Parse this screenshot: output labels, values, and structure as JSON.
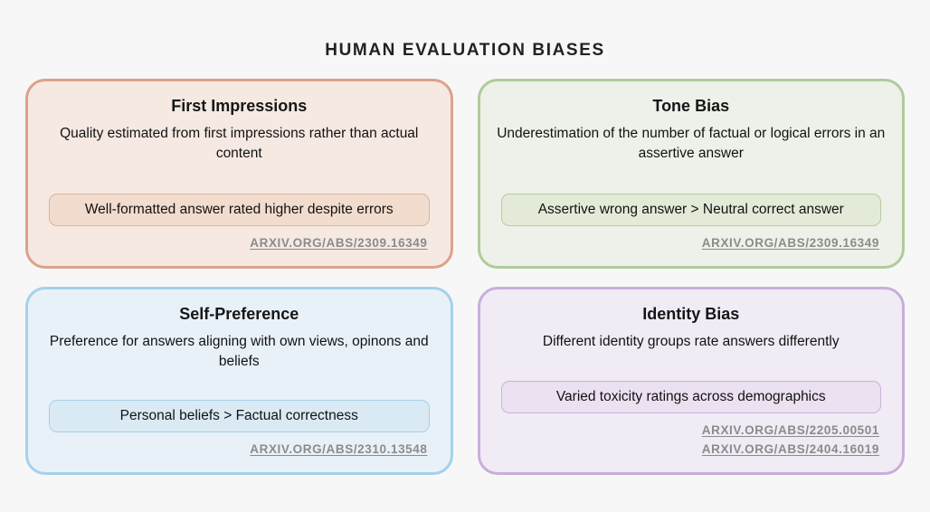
{
  "page": {
    "title": "HUMAN EVALUATION BIASES",
    "background_color": "#f7f7f8",
    "link_color": "#8b8b8b"
  },
  "cards": [
    {
      "id": "first-impressions",
      "title": "First Impressions",
      "description": "Quality estimated from first impressions rather than actual content",
      "badge": "Well-formatted answer rated higher despite errors",
      "links": [
        "ARXIV.ORG/ABS/2309.16349"
      ],
      "colors": {
        "border": "#dba28b",
        "background": "#f5e9e2",
        "badge_background": "#f2dcce",
        "badge_border": "#ddb29a"
      }
    },
    {
      "id": "tone-bias",
      "title": "Tone Bias",
      "description": "Underestimation of the number of factual or logical errors in an assertive answer",
      "badge": "Assertive wrong answer > Neutral correct answer",
      "links": [
        "ARXIV.ORG/ABS/2309.16349"
      ],
      "colors": {
        "border": "#afcc9a",
        "background": "#edf1e9",
        "badge_background": "#e3ebd8",
        "badge_border": "#b4ce9f"
      }
    },
    {
      "id": "self-preference",
      "title": "Self-Preference",
      "description": "Preference for answers aligning with own views, opinons and beliefs",
      "badge": "Personal beliefs > Factual correctness",
      "links": [
        "ARXIV.ORG/ABS/2310.13548"
      ],
      "colors": {
        "border": "#a2d2ec",
        "background": "#e9f1f8",
        "badge_background": "#d9eaf5",
        "badge_border": "#a7d0e8"
      }
    },
    {
      "id": "identity-bias",
      "title": "Identity Bias",
      "description": "Different identity groups rate answers differently",
      "badge": "Varied toxicity ratings across demographics",
      "links": [
        "ARXIV.ORG/ABS/2205.00501",
        "ARXIV.ORG/ABS/2404.16019"
      ],
      "colors": {
        "border": "#c8aedc",
        "background": "#f0ebf4",
        "badge_background": "#ebe1f1",
        "badge_border": "#cbb2dc"
      }
    }
  ]
}
